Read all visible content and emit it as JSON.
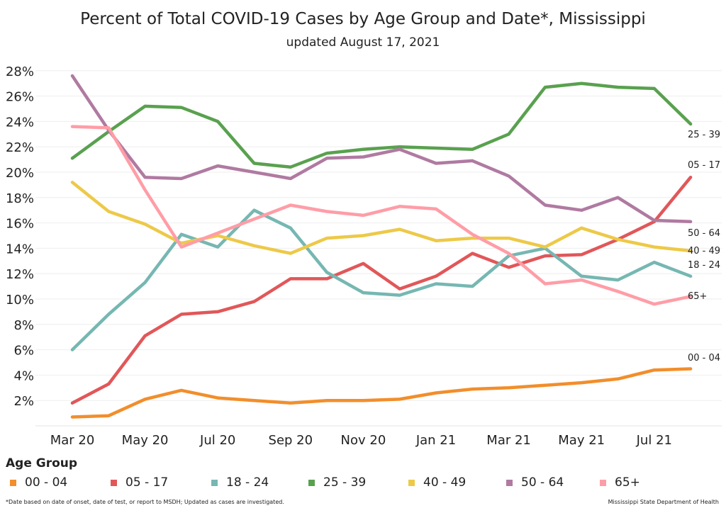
{
  "chart_data": {
    "type": "line",
    "title": "Percent of Total COVID-19 Cases by Age Group and Date*, Mississippi",
    "subtitle": "updated August 17, 2021",
    "xlabel": "",
    "ylabel": "",
    "x": [
      "Mar 20",
      "Apr 20",
      "May 20",
      "Jun 20",
      "Jul 20",
      "Aug 20",
      "Sep 20",
      "Oct 20",
      "Nov 20",
      "Dec 20",
      "Jan 21",
      "Feb 21",
      "Mar 21",
      "Apr 21",
      "May 21",
      "Jun 21",
      "Jul 21",
      "Aug 21"
    ],
    "x_tick_labels": [
      "Mar 20",
      "May 20",
      "Jul 20",
      "Sep 20",
      "Nov 20",
      "Jan 21",
      "Mar 21",
      "May 21",
      "Jul 21"
    ],
    "y_ticks": [
      "2%",
      "4%",
      "6%",
      "8%",
      "10%",
      "12%",
      "14%",
      "16%",
      "18%",
      "20%",
      "22%",
      "24%",
      "26%",
      "28%"
    ],
    "ylim": [
      0,
      28.5
    ],
    "grid": "horizontal",
    "legend_title": "Age Group",
    "legend_position": "bottom",
    "series": [
      {
        "name": "00 - 04",
        "color": "#f28e2b",
        "values": [
          0.7,
          0.8,
          2.1,
          2.8,
          2.2,
          2.0,
          1.8,
          2.0,
          2.0,
          2.1,
          2.6,
          2.9,
          3.0,
          3.2,
          3.4,
          3.7,
          4.4,
          4.5
        ]
      },
      {
        "name": "05 - 17",
        "color": "#e15759",
        "values": [
          1.8,
          3.3,
          7.1,
          8.8,
          9.0,
          9.8,
          11.6,
          11.6,
          12.8,
          10.8,
          11.8,
          13.6,
          12.5,
          13.4,
          13.5,
          14.7,
          16.1,
          19.6
        ]
      },
      {
        "name": "18 - 24",
        "color": "#76b7b2",
        "values": [
          6.0,
          8.8,
          11.3,
          15.1,
          14.1,
          17.0,
          15.6,
          12.1,
          10.5,
          10.3,
          11.2,
          11.0,
          13.4,
          14.0,
          11.8,
          11.5,
          12.9,
          11.8
        ]
      },
      {
        "name": "25 - 39",
        "color": "#59a14f",
        "values": [
          21.1,
          23.2,
          25.2,
          25.1,
          24.0,
          20.7,
          20.4,
          21.5,
          21.8,
          22.0,
          21.9,
          21.8,
          23.0,
          26.7,
          27.0,
          26.7,
          26.6,
          23.8
        ]
      },
      {
        "name": "40 - 49",
        "color": "#edc948",
        "values": [
          19.2,
          16.9,
          15.9,
          14.4,
          15.0,
          14.2,
          13.6,
          14.8,
          15.0,
          15.5,
          14.6,
          14.8,
          14.8,
          14.1,
          15.6,
          14.7,
          14.1,
          13.8
        ]
      },
      {
        "name": "50 - 64",
        "color": "#b07aa1",
        "values": [
          27.6,
          23.3,
          19.6,
          19.5,
          20.5,
          20.0,
          19.5,
          21.1,
          21.2,
          21.8,
          20.7,
          20.9,
          19.7,
          17.4,
          17.0,
          18.0,
          16.2,
          16.1
        ]
      },
      {
        "name": "65+",
        "color": "#ff9da7",
        "values": [
          23.6,
          23.5,
          18.6,
          14.1,
          15.2,
          16.3,
          17.4,
          16.9,
          16.6,
          17.3,
          17.1,
          15.1,
          13.6,
          11.2,
          11.5,
          10.6,
          9.6,
          10.2
        ]
      }
    ],
    "end_labels": [
      "00 - 04",
      "05 - 17",
      "18 - 24",
      "25 - 39",
      "40 - 49",
      "50 - 64",
      "65+"
    ]
  },
  "footnote": "*Date based on date of onset, date of test, or report to MSDH; Updated as cases are investigated.",
  "source": "Mississippi State Department of Health"
}
